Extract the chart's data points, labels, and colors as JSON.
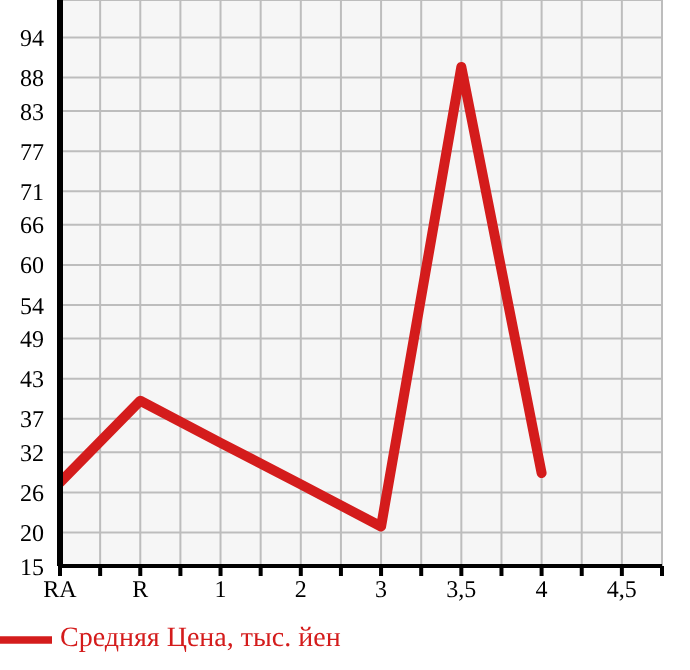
{
  "chart_data": {
    "type": "line",
    "categories": [
      "RA",
      "R",
      "1",
      "2",
      "3",
      "3,5",
      "4",
      "4,5"
    ],
    "series": [
      {
        "name": "Средняя Цена, тыс. йен",
        "color": "#d41c1c",
        "values": [
          27.5,
          39.7,
          33.4,
          27.2,
          20.9,
          89.6,
          28.9,
          null
        ]
      }
    ],
    "ylim": [
      15,
      99.6
    ],
    "yticks": [
      15,
      20,
      26,
      32,
      37,
      43,
      49,
      54,
      60,
      66,
      71,
      77,
      83,
      88,
      94
    ],
    "grid": true,
    "legend": "bottom",
    "marker": "none",
    "line_style": "solid"
  }
}
